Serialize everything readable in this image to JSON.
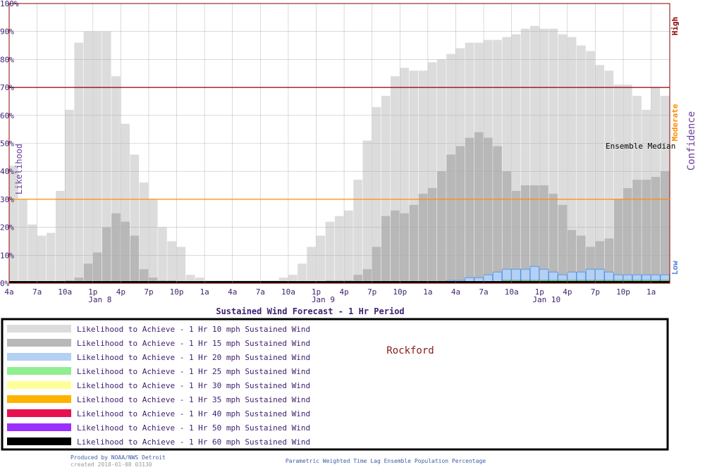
{
  "chart_data": {
    "type": "bar",
    "title": "Sustained Wind Forecast -  1 Hr Period",
    "location": "Rockford",
    "ylabel": "Likelihood",
    "right_label": "Confidence",
    "annotation": "Ensemble Median",
    "ylim": [
      0,
      100
    ],
    "grid": true,
    "y_ticks": [
      "0%",
      "10%",
      "20%",
      "30%",
      "40%",
      "50%",
      "60%",
      "70%",
      "80%",
      "90%",
      "100%"
    ],
    "x_ticks": [
      "4a",
      "7a",
      "10a",
      "1p",
      "4p",
      "7p",
      "10p",
      "1a",
      "4a",
      "7a",
      "10a",
      "1p",
      "4p",
      "7p",
      "10p",
      "1a",
      "4a",
      "7a",
      "10a",
      "1p",
      "4p",
      "7p",
      "10p",
      "1a"
    ],
    "day_labels": [
      "Jan  8",
      "Jan  9",
      "Jan 10"
    ],
    "confidence_levels": [
      {
        "label": "High",
        "value": 70,
        "color": "#8b0000"
      },
      {
        "label": "Moderate",
        "value": 30,
        "color": "#ff8c00"
      },
      {
        "label": "Low",
        "value": 0,
        "color": "#4f7fd9"
      }
    ],
    "hours": 71,
    "series": [
      {
        "name": "Likelihood to Achieve -  1 Hr 10 mph Sustained Wind",
        "color": "#dcdcdc",
        "values": [
          42,
          30,
          21,
          17,
          18,
          33,
          62,
          86,
          90,
          90,
          90,
          74,
          57,
          46,
          36,
          30,
          20,
          15,
          13,
          3,
          2,
          1,
          1,
          1,
          1,
          1,
          1,
          1,
          1,
          2,
          3,
          7,
          13,
          17,
          22,
          24,
          26,
          37,
          51,
          63,
          67,
          74,
          77,
          76,
          76,
          79,
          80,
          82,
          84,
          86,
          86,
          87,
          87,
          88,
          89,
          91,
          92,
          91,
          91,
          89,
          88,
          85,
          83,
          78,
          76,
          71,
          71,
          67,
          62,
          70,
          67
        ]
      },
      {
        "name": "Likelihood to Achieve -  1 Hr 15 mph Sustained Wind",
        "color": "#b8b8b8",
        "values": [
          0,
          0,
          0,
          0,
          0,
          0,
          1,
          2,
          7,
          11,
          20,
          25,
          22,
          17,
          5,
          2,
          1,
          1,
          0,
          0,
          0,
          0,
          0,
          0,
          0,
          0,
          0,
          0,
          0,
          0,
          0,
          0,
          0,
          0,
          1,
          1,
          1,
          3,
          5,
          13,
          24,
          26,
          25,
          28,
          32,
          34,
          40,
          46,
          49,
          52,
          54,
          52,
          49,
          40,
          33,
          35,
          35,
          35,
          32,
          28,
          19,
          17,
          13,
          15,
          16,
          30,
          34,
          37,
          37,
          38,
          40
        ]
      },
      {
        "name": "Likelihood to Achieve -  1 Hr 20 mph Sustained Wind",
        "color": "#b4d0f5",
        "values": [
          0,
          0,
          0,
          0,
          0,
          0,
          0,
          0,
          0,
          0,
          0,
          0,
          0,
          0,
          0,
          0,
          0,
          0,
          0,
          0,
          0,
          0,
          0,
          0,
          0,
          0,
          0,
          0,
          0,
          0,
          0,
          0,
          0,
          0,
          0,
          0,
          0,
          0,
          0,
          0,
          0,
          0,
          0,
          0,
          0,
          0,
          0,
          1,
          1,
          2,
          2,
          3,
          4,
          5,
          5,
          5,
          6,
          5,
          4,
          3,
          4,
          4,
          5,
          5,
          4,
          3,
          3,
          3,
          3,
          3,
          3
        ]
      },
      {
        "name": "Likelihood to Achieve -  1 Hr 25 mph Sustained Wind",
        "color": "#90ee90",
        "values": [
          0,
          0,
          0,
          0,
          0,
          0,
          0,
          0,
          0,
          0,
          0,
          0,
          0,
          0,
          0,
          0,
          0,
          0,
          0,
          0,
          0,
          0,
          0,
          0,
          0,
          0,
          0,
          0,
          0,
          0,
          0,
          0,
          0,
          0,
          0,
          0,
          0,
          0,
          0,
          0,
          0,
          0,
          0,
          0,
          0,
          0,
          0,
          0,
          0,
          0,
          0,
          0,
          0,
          1,
          1,
          1,
          1,
          1,
          1,
          1,
          1,
          1,
          1,
          1,
          1,
          1,
          1,
          1,
          1,
          1,
          1
        ]
      },
      {
        "name": "Likelihood to Achieve -  1 Hr 30 mph Sustained Wind",
        "color": "#ffff99",
        "values": []
      },
      {
        "name": "Likelihood to Achieve -  1 Hr 35 mph Sustained Wind",
        "color": "#ffb300",
        "values": []
      },
      {
        "name": "Likelihood to Achieve -  1 Hr 40 mph Sustained Wind",
        "color": "#e8104f",
        "values": []
      },
      {
        "name": "Likelihood to Achieve -  1 Hr 50 mph Sustained Wind",
        "color": "#9b30ff",
        "values": []
      },
      {
        "name": "Likelihood to Achieve -  1 Hr 60 mph Sustained Wind",
        "color": "#000000",
        "values": []
      }
    ]
  },
  "footer": {
    "credit_line1": "Produced by NOAA/NWS Detroit",
    "credit_line2": "created 2018-01-08 03130",
    "caption": "Parametric Weighted Time Lag Ensemble Population Percentage"
  }
}
